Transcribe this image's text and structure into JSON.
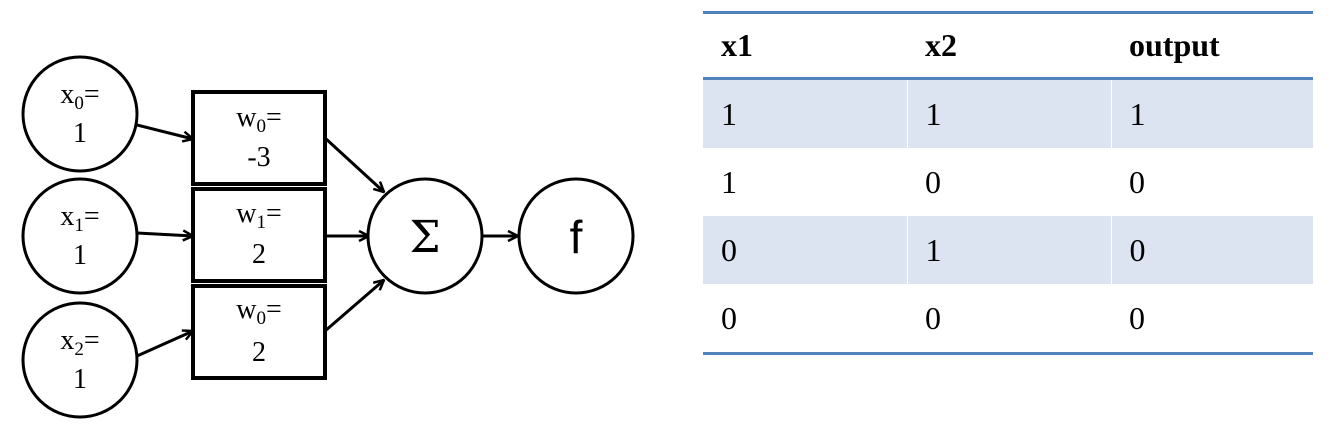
{
  "diagram": {
    "inputs": [
      {
        "var": "x",
        "sub": "0",
        "eq": "=",
        "value": "1"
      },
      {
        "var": "x",
        "sub": "1",
        "eq": "=",
        "value": "1"
      },
      {
        "var": "x",
        "sub": "2",
        "eq": "=",
        "value": "1"
      }
    ],
    "weights": [
      {
        "var": "w",
        "sub": "0",
        "eq": "=",
        "value": "-3"
      },
      {
        "var": "w",
        "sub": "1",
        "eq": "=",
        "value": "2"
      },
      {
        "var": "w",
        "sub": "0",
        "eq": "=",
        "value": "2"
      }
    ],
    "sum_symbol": "Σ",
    "activation_symbol": "f"
  },
  "table": {
    "headers": [
      "x1",
      "x2",
      "output"
    ],
    "rows": [
      [
        "1",
        "1",
        "1"
      ],
      [
        "1",
        "0",
        "0"
      ],
      [
        "0",
        "1",
        "0"
      ],
      [
        "0",
        "0",
        "0"
      ]
    ],
    "accent_color": "#4f81bd",
    "shade_color": "#dbe4f0"
  }
}
